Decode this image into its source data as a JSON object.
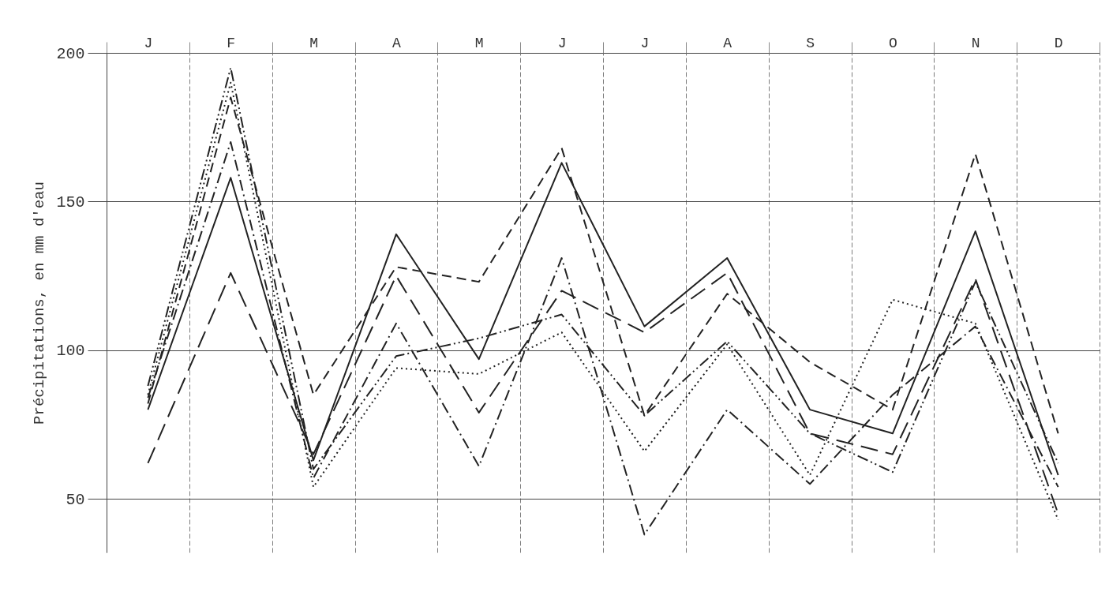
{
  "chart_data": {
    "type": "line",
    "ylabel": "Précipitations, en mm d'eau",
    "categories": [
      "J",
      "F",
      "M",
      "A",
      "M",
      "J",
      "J",
      "A",
      "S",
      "O",
      "N",
      "D"
    ],
    "series": [
      {
        "color": "#222222",
        "line_style": "solid",
        "values": [
          80,
          158,
          63,
          139,
          97,
          163,
          108,
          131,
          80,
          72,
          140,
          58
        ]
      },
      {
        "color": "#222222",
        "line_style": "longdash",
        "values": [
          62,
          126,
          65,
          125,
          79,
          120,
          106,
          126,
          72,
          65,
          124,
          45
        ]
      },
      {
        "color": "#222222",
        "line_style": "dashed",
        "values": [
          82,
          185,
          85,
          128,
          123,
          168,
          78,
          119,
          96,
          80,
          166,
          72
        ]
      },
      {
        "color": "#222222",
        "line_style": "dashdot",
        "values": [
          84,
          170,
          57,
          109,
          61,
          131,
          38,
          80,
          55,
          85,
          108,
          54
        ]
      },
      {
        "color": "#222222",
        "line_style": "dotted",
        "values": [
          85,
          190,
          54,
          94,
          92,
          106,
          66,
          102,
          58,
          117,
          109,
          43
        ]
      },
      {
        "color": "#222222",
        "line_style": "dashdotdot",
        "values": [
          88,
          195,
          60,
          98,
          104,
          112,
          78,
          103,
          72,
          59,
          123,
          62
        ]
      }
    ],
    "ylim": [
      32,
      200
    ],
    "yticks": [
      50,
      100,
      150,
      200
    ],
    "grid": true
  }
}
